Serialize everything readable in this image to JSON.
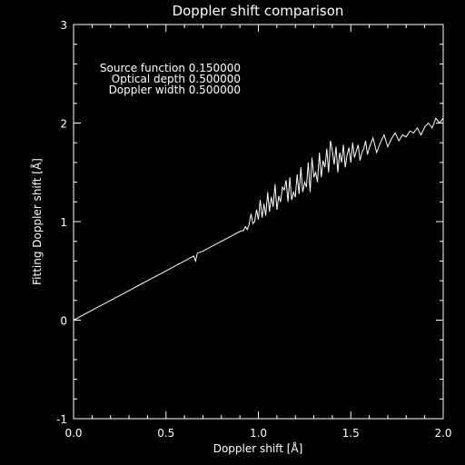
{
  "chart_data": {
    "type": "line",
    "title": "Doppler shift comparison",
    "xlabel": "Doppler shift [Å]",
    "ylabel": "Fitting Doppler shift [Å]",
    "xlim": [
      0.0,
      2.0
    ],
    "ylim": [
      -1,
      3
    ],
    "x_ticks": [
      "0.0",
      "0.5",
      "1.0",
      "1.5",
      "2.0"
    ],
    "y_ticks": [
      "-1",
      "0",
      "1",
      "2",
      "3"
    ],
    "grid": false,
    "background": "#000000",
    "line_color": "#ffffff",
    "annotations": [
      "Source function  0.150000",
      "Optical depth  0.500000",
      "Doppler width  0.500000"
    ],
    "series": [
      {
        "x": [
          0.0,
          0.05,
          0.1,
          0.15,
          0.2,
          0.25,
          0.3,
          0.35,
          0.4,
          0.45,
          0.5,
          0.55,
          0.6,
          0.63,
          0.65,
          0.66,
          0.67,
          0.7,
          0.75,
          0.8,
          0.85,
          0.9,
          0.92,
          0.93,
          0.94,
          0.95,
          0.96,
          0.97,
          0.98,
          0.99,
          1.0,
          1.01,
          1.02,
          1.03,
          1.04,
          1.05,
          1.06,
          1.07,
          1.08,
          1.09,
          1.1,
          1.11,
          1.12,
          1.13,
          1.14,
          1.15,
          1.16,
          1.17,
          1.18,
          1.19,
          1.2,
          1.21,
          1.22,
          1.23,
          1.24,
          1.25,
          1.26,
          1.27,
          1.28,
          1.29,
          1.3,
          1.31,
          1.32,
          1.33,
          1.34,
          1.35,
          1.36,
          1.37,
          1.38,
          1.39,
          1.4,
          1.41,
          1.42,
          1.43,
          1.44,
          1.45,
          1.46,
          1.47,
          1.48,
          1.49,
          1.5,
          1.51,
          1.52,
          1.53,
          1.54,
          1.55,
          1.56,
          1.57,
          1.58,
          1.59,
          1.6,
          1.62,
          1.64,
          1.66,
          1.68,
          1.7,
          1.72,
          1.74,
          1.76,
          1.78,
          1.8,
          1.82,
          1.84,
          1.86,
          1.88,
          1.9,
          1.92,
          1.94,
          1.96,
          1.98,
          2.0
        ],
        "y": [
          0.0,
          0.05,
          0.1,
          0.15,
          0.2,
          0.25,
          0.3,
          0.35,
          0.4,
          0.45,
          0.5,
          0.55,
          0.6,
          0.63,
          0.65,
          0.6,
          0.68,
          0.7,
          0.75,
          0.8,
          0.85,
          0.9,
          0.91,
          0.95,
          0.92,
          0.97,
          1.08,
          0.98,
          1.0,
          1.12,
          1.02,
          1.22,
          1.04,
          1.18,
          1.06,
          1.3,
          1.1,
          1.25,
          1.15,
          1.38,
          1.12,
          1.26,
          1.2,
          1.35,
          1.32,
          1.42,
          1.2,
          1.45,
          1.22,
          1.3,
          1.25,
          1.48,
          1.28,
          1.55,
          1.3,
          1.4,
          1.35,
          1.6,
          1.3,
          1.65,
          1.45,
          1.5,
          1.4,
          1.7,
          1.45,
          1.62,
          1.55,
          1.74,
          1.5,
          1.82,
          1.72,
          1.58,
          1.76,
          1.5,
          1.7,
          1.6,
          1.78,
          1.55,
          1.68,
          1.75,
          1.6,
          1.8,
          1.65,
          1.72,
          1.78,
          1.62,
          1.7,
          1.74,
          1.82,
          1.68,
          1.75,
          1.85,
          1.7,
          1.8,
          1.88,
          1.76,
          1.84,
          1.9,
          1.82,
          1.88,
          1.86,
          1.92,
          1.9,
          1.95,
          1.88,
          1.96,
          2.0,
          1.95,
          2.05,
          2.0,
          2.05
        ]
      }
    ]
  }
}
